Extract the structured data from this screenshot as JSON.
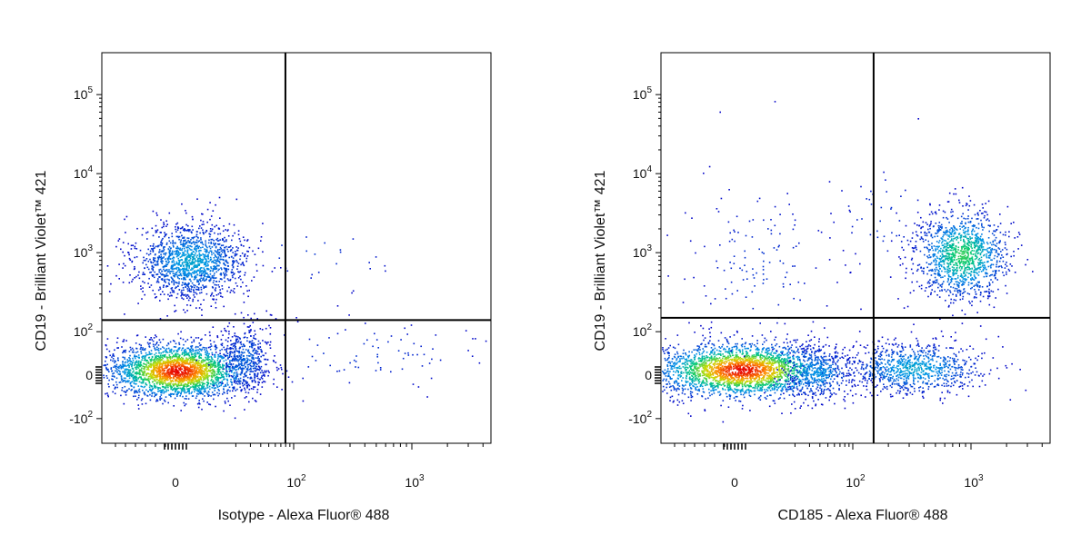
{
  "chart_data": [
    {
      "type": "scatter",
      "style": "density-pseudocolor",
      "xlabel": "Isotype - Alexa Fluor® 488",
      "ylabel": "CD19 - Brilliant Violet™ 421",
      "x_scale": "biexponential",
      "y_scale": "biexponential",
      "x_ticks": [
        {
          "value": 0,
          "base": "0",
          "exp": ""
        },
        {
          "value": 100,
          "base": "10",
          "exp": "2"
        },
        {
          "value": 1000,
          "base": "10",
          "exp": "3"
        }
      ],
      "y_ticks": [
        {
          "value": -100,
          "base": "-10",
          "exp": "2"
        },
        {
          "value": 0,
          "base": "0",
          "exp": ""
        },
        {
          "value": 100,
          "base": "10",
          "exp": "2"
        },
        {
          "value": 1000,
          "base": "10",
          "exp": "3"
        },
        {
          "value": 10000,
          "base": "10",
          "exp": "4"
        },
        {
          "value": 100000,
          "base": "10",
          "exp": "5"
        }
      ],
      "quadrant_gate": {
        "x": 70,
        "y": 140
      },
      "populations": [
        {
          "x_center": 10,
          "y_center": 0,
          "relative_density": "high"
        },
        {
          "x_center": 15,
          "y_center": 700,
          "relative_density": "medium"
        }
      ]
    },
    {
      "type": "scatter",
      "style": "density-pseudocolor",
      "xlabel": "CD185 - Alexa Fluor® 488",
      "ylabel": "CD19 - Brilliant Violet™ 421",
      "x_scale": "biexponential",
      "y_scale": "biexponential",
      "x_ticks": [
        {
          "value": 0,
          "base": "0",
          "exp": ""
        },
        {
          "value": 100,
          "base": "10",
          "exp": "2"
        },
        {
          "value": 1000,
          "base": "10",
          "exp": "3"
        }
      ],
      "y_ticks": [
        {
          "value": -100,
          "base": "-10",
          "exp": "2"
        },
        {
          "value": 0,
          "base": "0",
          "exp": ""
        },
        {
          "value": 100,
          "base": "10",
          "exp": "2"
        },
        {
          "value": 1000,
          "base": "10",
          "exp": "3"
        },
        {
          "value": 10000,
          "base": "10",
          "exp": "4"
        },
        {
          "value": 100000,
          "base": "10",
          "exp": "5"
        }
      ],
      "quadrant_gate": {
        "x": 150,
        "y": 150
      },
      "populations": [
        {
          "x_center": 10,
          "y_center": 0,
          "relative_density": "high"
        },
        {
          "x_center": 700,
          "y_center": 0,
          "relative_density": "medium"
        },
        {
          "x_center": 1800,
          "y_center": 800,
          "relative_density": "medium"
        }
      ]
    }
  ]
}
